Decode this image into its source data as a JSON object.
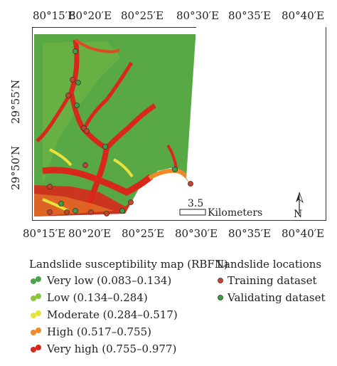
{
  "axes": {
    "top_ticks": [
      "80°15′E",
      "80°20′E",
      "80°25′E",
      "80°30′E",
      "80°35′E",
      "80°40′E"
    ],
    "bottom_ticks": [
      "80°15′E",
      "80°20′E",
      "80°25′E",
      "80°30′E",
      "80°35′E",
      "80°40′E"
    ],
    "left_ticks": [
      "29°55′N",
      "29°50′N"
    ],
    "right_ticks": [
      "29°55′N",
      "29°50′N"
    ]
  },
  "scale_bar": {
    "value": "3.5",
    "unit": "Kilometers"
  },
  "north_arrow": {
    "label": "N",
    "icon": "north-arrow-icon"
  },
  "legend_map": {
    "title": "Landslide susceptibility map (RBFN)",
    "classes": [
      {
        "label": "Very low (0.083–0.134)",
        "color": "#4ea34a"
      },
      {
        "label": "Low (0.134–0.284)",
        "color": "#8cc43f"
      },
      {
        "label": "Moderate (0.284–0.517)",
        "color": "#e8e23a"
      },
      {
        "label": "High (0.517–0.755)",
        "color": "#ee8a2a"
      },
      {
        "label": "Very high (0.755–0.977)",
        "color": "#d8281c"
      }
    ]
  },
  "legend_points": {
    "title": "Landslide locations",
    "items": [
      {
        "label": "Training dataset",
        "color": "#c8432a"
      },
      {
        "label": "Validating dataset",
        "color": "#3aa040"
      }
    ]
  }
}
